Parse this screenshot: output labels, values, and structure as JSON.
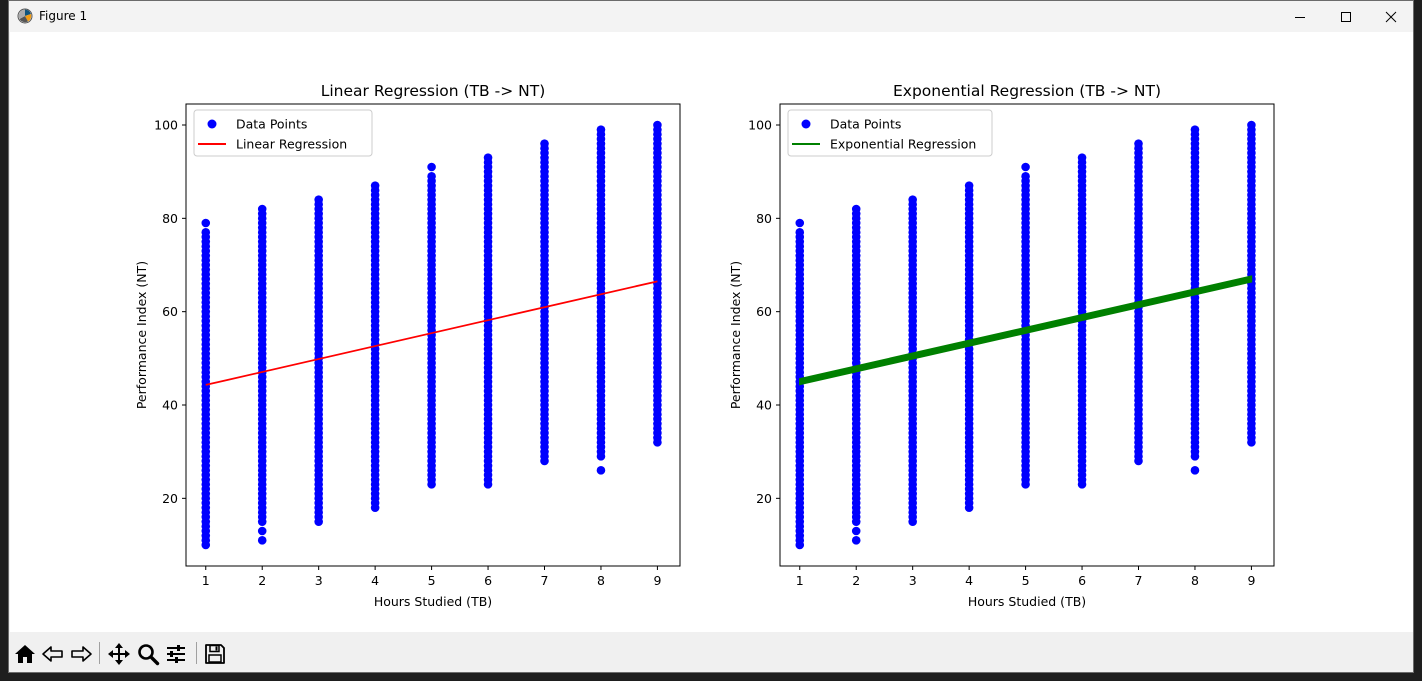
{
  "window": {
    "title": "Figure 1"
  },
  "icons": {
    "app": "matplotlib-icon",
    "minimize": "minimize-icon",
    "maximize": "maximize-icon",
    "close": "close-icon",
    "home": "home-icon",
    "back": "back-arrow-icon",
    "forward": "forward-arrow-icon",
    "pan": "pan-icon",
    "zoom": "zoom-icon",
    "configure": "configure-subplots-icon",
    "save": "save-icon"
  },
  "chart_data": [
    {
      "type": "scatter",
      "title": "Linear Regression (TB -> NT)",
      "xlabel": "Hours Studied (TB)",
      "ylabel": "Performance Index (NT)",
      "xlim": [
        0.65,
        9.4
      ],
      "ylim": [
        5.5,
        104.5
      ],
      "xticks": [
        1,
        2,
        3,
        4,
        5,
        6,
        7,
        8,
        9
      ],
      "yticks": [
        20,
        40,
        60,
        80,
        100
      ],
      "legend_position": "upper-left",
      "scatter": {
        "name": "Data Points",
        "color": "#0000ff",
        "columns": [
          {
            "x": 1,
            "min": 10,
            "max": 77,
            "extra": [
              79
            ]
          },
          {
            "x": 2,
            "min": 15,
            "max": 82,
            "extra": [
              13,
              11
            ]
          },
          {
            "x": 3,
            "min": 15,
            "max": 84,
            "extra": []
          },
          {
            "x": 4,
            "min": 18,
            "max": 87,
            "extra": []
          },
          {
            "x": 5,
            "min": 23,
            "max": 89,
            "extra": [
              91
            ]
          },
          {
            "x": 6,
            "min": 23,
            "max": 93,
            "extra": []
          },
          {
            "x": 7,
            "min": 28,
            "max": 96,
            "extra": []
          },
          {
            "x": 8,
            "min": 29,
            "max": 99,
            "extra": [
              26
            ]
          },
          {
            "x": 9,
            "min": 32,
            "max": 100,
            "extra": []
          }
        ]
      },
      "fit": {
        "name": "Linear Regression",
        "color": "#ff0000",
        "x": [
          1,
          9
        ],
        "y": [
          44.3,
          66.5
        ],
        "band": 0
      }
    },
    {
      "type": "scatter",
      "title": "Exponential Regression (TB -> NT)",
      "xlabel": "Hours Studied (TB)",
      "ylabel": "Performance Index (NT)",
      "xlim": [
        0.65,
        9.4
      ],
      "ylim": [
        5.5,
        104.5
      ],
      "xticks": [
        1,
        2,
        3,
        4,
        5,
        6,
        7,
        8,
        9
      ],
      "yticks": [
        20,
        40,
        60,
        80,
        100
      ],
      "legend_position": "upper-left",
      "scatter": {
        "name": "Data Points",
        "color": "#0000ff",
        "columns": [
          {
            "x": 1,
            "min": 10,
            "max": 77,
            "extra": [
              79
            ]
          },
          {
            "x": 2,
            "min": 15,
            "max": 82,
            "extra": [
              13,
              11
            ]
          },
          {
            "x": 3,
            "min": 15,
            "max": 84,
            "extra": []
          },
          {
            "x": 4,
            "min": 18,
            "max": 87,
            "extra": []
          },
          {
            "x": 5,
            "min": 23,
            "max": 89,
            "extra": [
              91
            ]
          },
          {
            "x": 6,
            "min": 23,
            "max": 93,
            "extra": []
          },
          {
            "x": 7,
            "min": 28,
            "max": 96,
            "extra": []
          },
          {
            "x": 8,
            "min": 29,
            "max": 99,
            "extra": [
              26
            ]
          },
          {
            "x": 9,
            "min": 32,
            "max": 100,
            "extra": []
          }
        ]
      },
      "fit": {
        "name": "Exponential Regression",
        "color": "#008000",
        "x": [
          1,
          9
        ],
        "y": [
          45.0,
          67.0
        ],
        "band": 0.6
      }
    }
  ]
}
